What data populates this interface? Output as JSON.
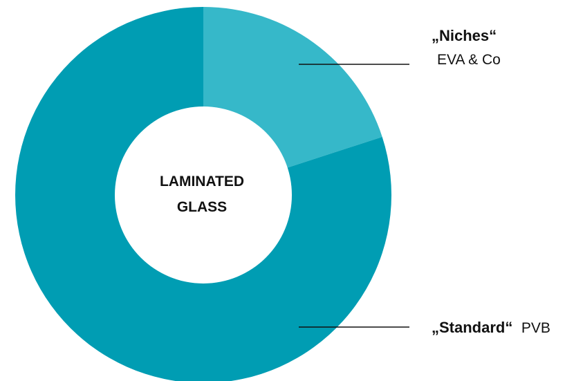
{
  "chart_data": {
    "type": "pie",
    "variant": "donut",
    "center_label": [
      "LAMINATED",
      "GLASS"
    ],
    "slices": [
      {
        "name": "„Niches“",
        "sublabel": "EVA & Co",
        "value": 20,
        "color": "#36b8c9"
      },
      {
        "name": "„Standard“",
        "sublabel": "PVB",
        "value": 80,
        "color": "#009db3"
      }
    ],
    "legend": "none"
  }
}
